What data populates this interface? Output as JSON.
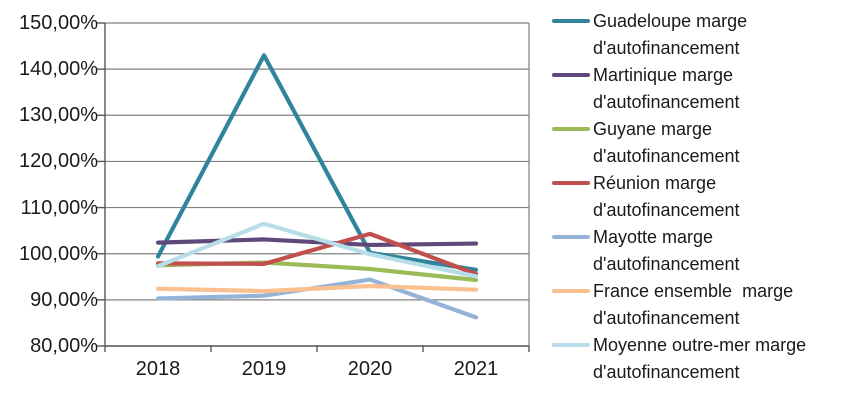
{
  "chart_data": {
    "type": "line",
    "title": "",
    "xlabel": "",
    "ylabel": "",
    "categories": [
      "2018",
      "2019",
      "2020",
      "2021"
    ],
    "series": [
      {
        "name": "Guadeloupe marge d'autofinancement",
        "color": "#31849B",
        "values": [
          99.4,
          143.0,
          100.2,
          96.5
        ]
      },
      {
        "name": "Martinique marge d'autofinancement",
        "color": "#5F497A",
        "values": [
          102.4,
          103.1,
          101.9,
          102.2
        ]
      },
      {
        "name": "Guyane marge d'autofinancement",
        "color": "#9BBB59",
        "values": [
          97.5,
          98.1,
          96.7,
          94.3
        ]
      },
      {
        "name": "Réunion marge d'autofinancement",
        "color": "#C0504D",
        "values": [
          97.9,
          97.8,
          104.3,
          95.6
        ]
      },
      {
        "name": "Mayotte marge d'autofinancement",
        "color": "#95B3D7",
        "values": [
          90.3,
          90.9,
          94.4,
          86.2
        ]
      },
      {
        "name": "France ensemble  marge d'autofinancement",
        "color": "#FAC08F",
        "values": [
          92.4,
          91.9,
          93.0,
          92.2
        ]
      },
      {
        "name": "Moyenne outre-mer marge d'autofinancement",
        "color": "#B7DEE8",
        "values": [
          97.3,
          106.5,
          99.9,
          95.1
        ]
      }
    ],
    "ylim": [
      80,
      150
    ],
    "y_ticks": [
      80,
      90,
      100,
      110,
      120,
      130,
      140,
      150
    ],
    "y_tick_labels": [
      "80,00%",
      "90,00%",
      "100,00%",
      "110,00%",
      "120,00%",
      "130,00%",
      "140,00%",
      "150,00%"
    ],
    "grid": true,
    "legend_position": "right"
  },
  "colors": {
    "background": "#FFFFFF",
    "gridline": "#808080",
    "axis": "#595959",
    "text": "#1A1A1A"
  }
}
